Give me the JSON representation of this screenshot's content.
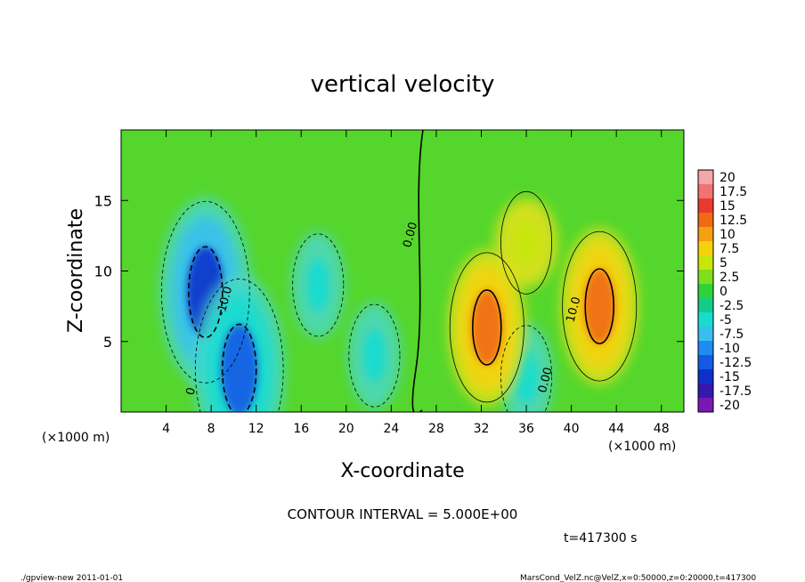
{
  "chart_data": {
    "type": "heatmap",
    "title": "vertical velocity",
    "xlabel": "X-coordinate",
    "ylabel": "Z-coordinate",
    "x_unit": "(×1000 m)",
    "y_unit": "(×1000 m)",
    "xlim": [
      0,
      50
    ],
    "ylim": [
      0,
      20
    ],
    "x_ticks": [
      4,
      8,
      12,
      16,
      20,
      24,
      28,
      32,
      36,
      40,
      44,
      48
    ],
    "y_ticks": [
      5,
      10,
      15
    ],
    "contour_interval_label": "CONTOUR INTERVAL = 5.000E+00",
    "time_label": "t=417300 s",
    "contour_labels": [
      {
        "text": "0.00",
        "x": 26.0,
        "z": 12.5
      },
      {
        "text": "-10.0",
        "x": 9.5,
        "z": 7.8
      },
      {
        "text": "0",
        "x": 6.5,
        "z": 1.4
      },
      {
        "text": "10.0",
        "x": 40.5,
        "z": 7.2
      },
      {
        "text": "0.00",
        "x": 38.0,
        "z": 2.2
      }
    ],
    "colorbar": {
      "labels": [
        "20",
        "17.5",
        "15",
        "12.5",
        "10",
        "7.5",
        "5",
        "2.5",
        "0",
        "-2.5",
        "-5",
        "-7.5",
        "-10",
        "-12.5",
        "-15",
        "-17.5",
        "-20"
      ],
      "colors": [
        "#f4a6a8",
        "#f07272",
        "#ea3a2e",
        "#f06a14",
        "#f5a010",
        "#f5d20a",
        "#c8e60c",
        "#7ee01c",
        "#30d23a",
        "#14cc8a",
        "#18dcd2",
        "#38bff0",
        "#1e8cf0",
        "#145ae6",
        "#1030cc",
        "#3418b0",
        "#7a18b4"
      ]
    },
    "features": [
      {
        "kind": "downdraft",
        "x": 7.5,
        "z": 8.5,
        "peak": -15
      },
      {
        "kind": "downdraft",
        "x": 10.5,
        "z": 3.0,
        "peak": -12.5
      },
      {
        "kind": "downdraft",
        "x": 17.5,
        "z": 9.0,
        "peak": -5
      },
      {
        "kind": "downdraft",
        "x": 22.5,
        "z": 4.0,
        "peak": -5
      },
      {
        "kind": "downdraft",
        "x": 36.0,
        "z": 2.5,
        "peak": -5
      },
      {
        "kind": "updraft",
        "x": 32.5,
        "z": 6.0,
        "peak": 12.5
      },
      {
        "kind": "updraft",
        "x": 42.5,
        "z": 7.5,
        "peak": 12.5
      },
      {
        "kind": "updraft",
        "x": 36.0,
        "z": 12.0,
        "peak": 5
      }
    ]
  },
  "footer": {
    "left": "./gpview-new  2011-01-01",
    "right": "MarsCond_VelZ.nc@VelZ,x=0:50000,z=0:20000,t=417300"
  }
}
